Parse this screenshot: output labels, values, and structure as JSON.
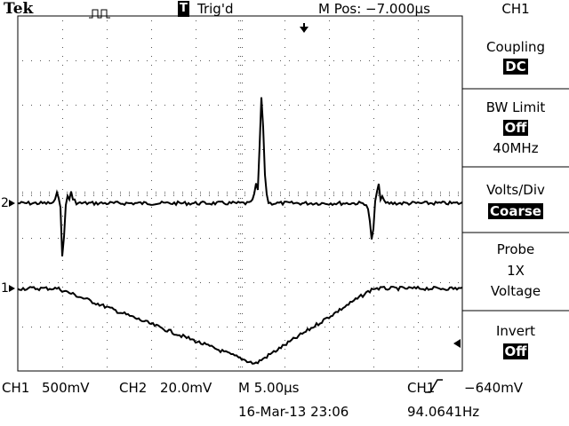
{
  "header": {
    "brand": "Tek",
    "trigger_icon": "T",
    "trigger_status": "Trig'd",
    "position": "M Pos: −7.000µs"
  },
  "menu": {
    "title": "CH1",
    "items": [
      {
        "label": "Coupling",
        "value": "DC"
      },
      {
        "label": "BW Limit",
        "value": "Off",
        "note": "40MHz"
      },
      {
        "label": "Volts/Div",
        "value": "Coarse"
      },
      {
        "label": "Probe",
        "value": "1X",
        "note": "Voltage"
      },
      {
        "label": "Invert",
        "value": "Off"
      }
    ]
  },
  "markers": {
    "ch2": "2",
    "ch1": "1"
  },
  "footer": {
    "ch1": "CH1",
    "ch1_scale": "500mV",
    "ch2": "CH2",
    "ch2_scale": "20.0mV",
    "timebase": "M 5.00µs",
    "trigger_source": "CH1",
    "trigger_level": "−640mV",
    "datetime": "16-Mar-13 23:06",
    "frequency": "94.0641Hz"
  }
}
